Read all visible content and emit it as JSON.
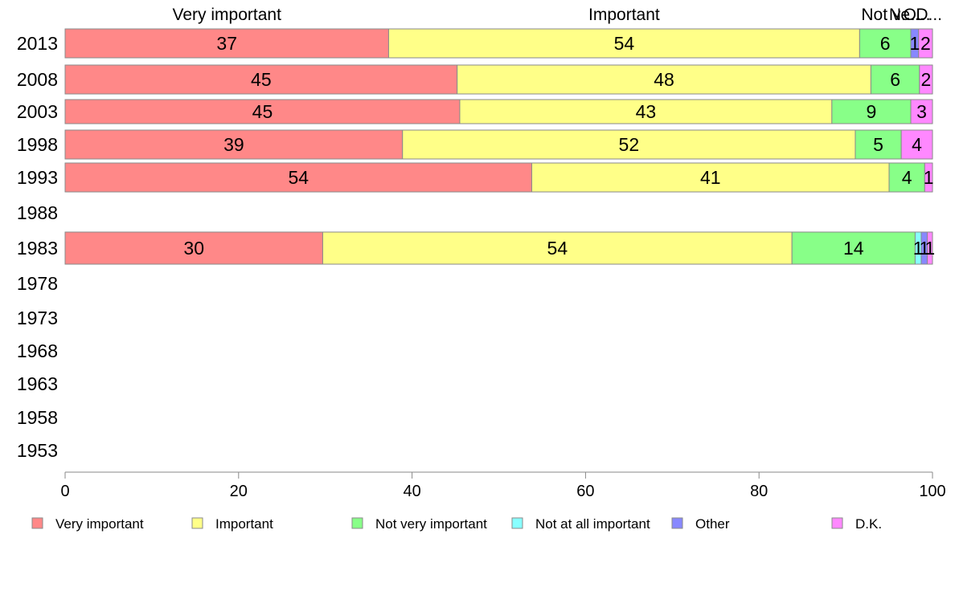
{
  "chart_data": {
    "type": "bar",
    "orientation": "horizontal",
    "stacked": true,
    "categories": [
      "2013",
      "2008",
      "2003",
      "1998",
      "1993",
      "1988",
      "1983",
      "1978",
      "1973",
      "1968",
      "1963",
      "1958",
      "1953"
    ],
    "series": [
      {
        "name": "Very important",
        "color": "#ff8888",
        "values": [
          37.3,
          45.2,
          45.5,
          38.9,
          53.8,
          null,
          29.7,
          null,
          null,
          null,
          null,
          null,
          null
        ],
        "labels": [
          "37",
          "45",
          "45",
          "39",
          "54",
          "",
          "30",
          "",
          "",
          "",
          "",
          "",
          ""
        ]
      },
      {
        "name": "Important",
        "color": "#ffff88",
        "values": [
          54.3,
          47.7,
          42.9,
          52.2,
          41.2,
          null,
          54.1,
          null,
          null,
          null,
          null,
          null,
          null
        ],
        "labels": [
          "54",
          "48",
          "43",
          "52",
          "41",
          "",
          "54",
          "",
          "",
          "",
          "",
          "",
          ""
        ]
      },
      {
        "name": "Not very important",
        "color": "#88ff88",
        "values": [
          5.9,
          5.6,
          9.1,
          5.3,
          4.1,
          null,
          14.2,
          null,
          null,
          null,
          null,
          null,
          null
        ],
        "labels": [
          "6",
          "6",
          "9",
          "5",
          "4",
          "",
          "14",
          "",
          "",
          "",
          "",
          "",
          ""
        ]
      },
      {
        "name": "Not at all important",
        "color": "#88ffff",
        "values": [
          0,
          0,
          0,
          0,
          0,
          null,
          0.7,
          null,
          null,
          null,
          null,
          null,
          null
        ],
        "labels": [
          "",
          "",
          "",
          "",
          "",
          "",
          "1",
          "",
          "",
          "",
          "",
          "",
          ""
        ]
      },
      {
        "name": "Other",
        "color": "#8888ff",
        "values": [
          0.9,
          0,
          0,
          0,
          0,
          null,
          0.7,
          null,
          null,
          null,
          null,
          null,
          null
        ],
        "labels": [
          "1",
          "",
          "",
          "",
          "",
          "",
          "1",
          "",
          "",
          "",
          "",
          "",
          ""
        ]
      },
      {
        "name": "D.K.",
        "color": "#ff88ff",
        "values": [
          1.6,
          1.5,
          2.5,
          3.6,
          0.9,
          null,
          0.6,
          null,
          null,
          null,
          null,
          null,
          null
        ],
        "labels": [
          "2",
          "2",
          "3",
          "4",
          "1",
          "",
          "1",
          "",
          "",
          "",
          "",
          "",
          ""
        ]
      }
    ],
    "top_labels": [
      "Very important",
      "Important",
      "Not ve...",
      "N...",
      "O...",
      "D..."
    ],
    "xlim": [
      0,
      100
    ],
    "xticks": [
      "0",
      "20",
      "40",
      "60",
      "80",
      "100"
    ],
    "grid": false,
    "legend_position": "bottom"
  }
}
